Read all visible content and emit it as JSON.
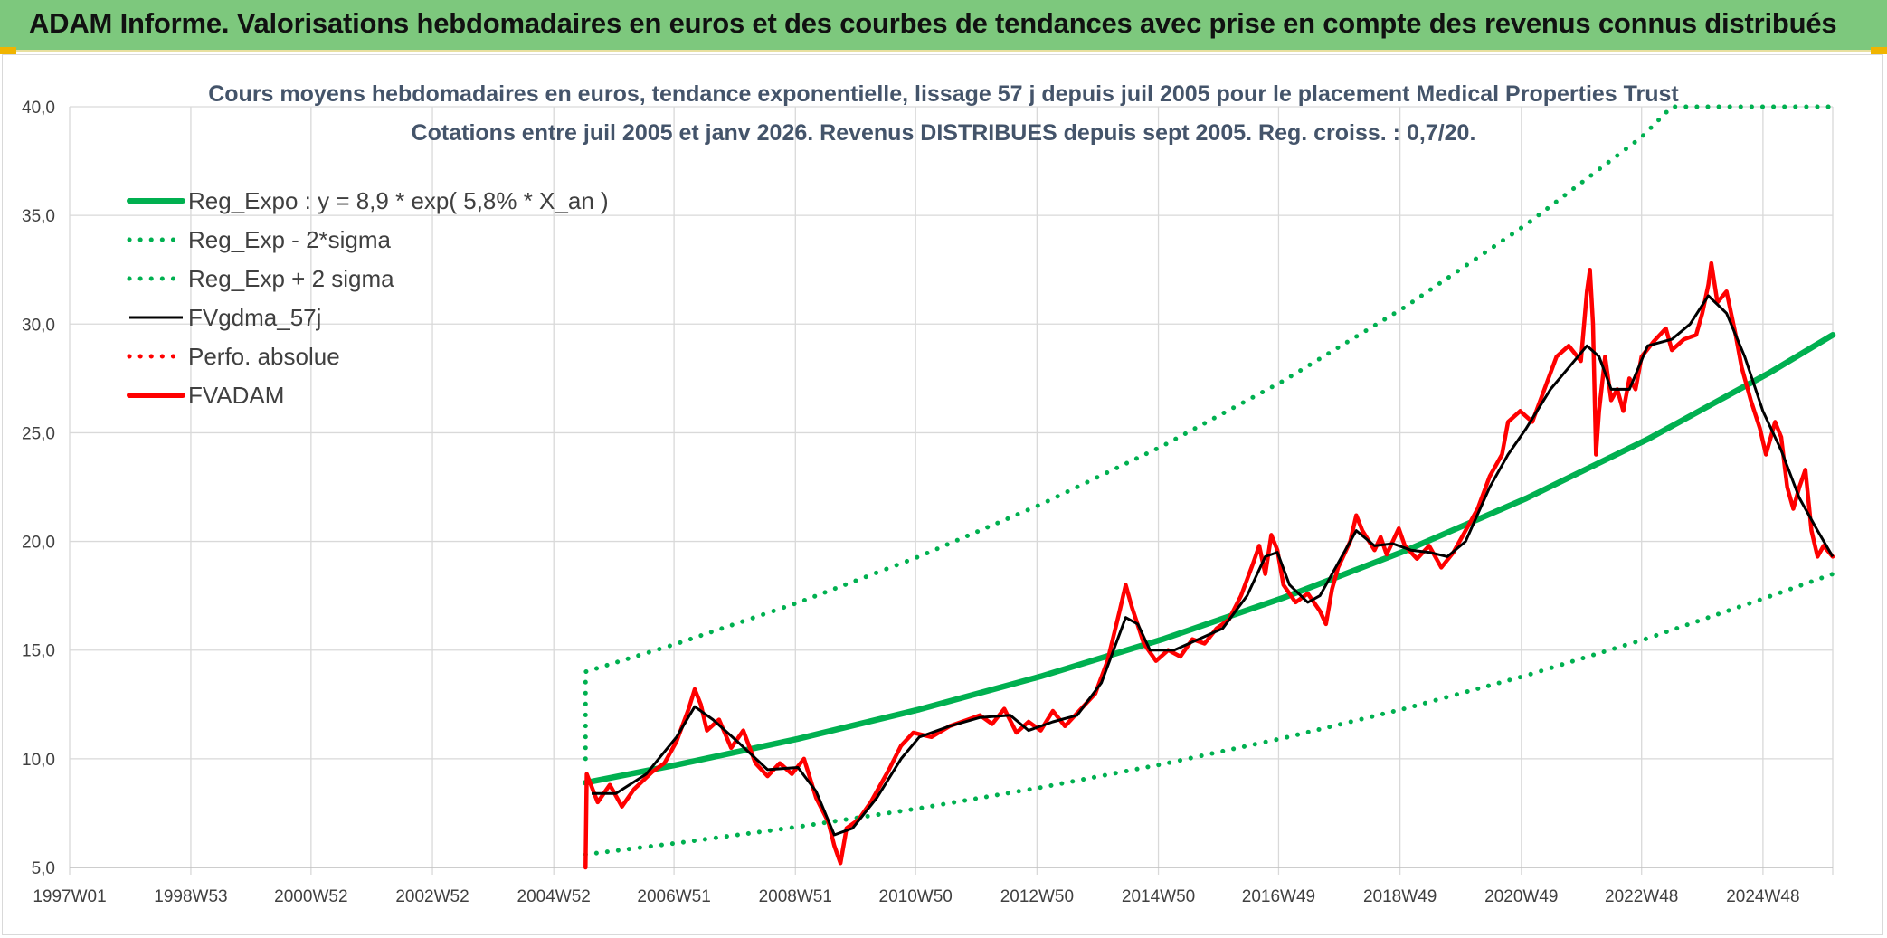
{
  "banner": {
    "title": "ADAM Informe. Valorisations hebdomadaires en euros et des courbes de tendances avec prise en compte des revenus connus distribués"
  },
  "colors": {
    "banner_bg": "#7dc87d",
    "trend_green": "#00b050",
    "band_green": "#00b050",
    "smooth_black": "#000000",
    "price_red": "#ff0000",
    "grid": "#d9d9d9"
  },
  "chart_data": {
    "type": "line",
    "title": "Cours moyens hebdomadaires en euros, tendance exponentielle, lissage 57 j depuis juil 2005 pour le placement Medical Properties Trust",
    "subtitle": "Cotations entre juil 2005 et janv 2026. Revenus DISTRIBUES depuis sept 2005. Reg. croiss. : 0,7/20.",
    "xlabel": "",
    "ylabel": "",
    "x_ticks": [
      "1997W01",
      "1998W53",
      "2000W52",
      "2002W52",
      "2004W52",
      "2006W51",
      "2008W51",
      "2010W50",
      "2012W50",
      "2014W50",
      "2016W49",
      "2018W49",
      "2020W49",
      "2022W48",
      "2024W48"
    ],
    "x_range": [
      1997.0,
      2026.05
    ],
    "y_ticks": [
      "5,0",
      "10,0",
      "15,0",
      "20,0",
      "25,0",
      "30,0",
      "35,0",
      "40,0"
    ],
    "ylim": [
      5,
      40
    ],
    "grid": true,
    "legend_position": "top-left",
    "series": [
      {
        "name": "Reg_Expo : y = 8,9 * exp( 5,8% *  X_an )",
        "style": "solid-thick",
        "color": "#00b050",
        "points": [
          [
            2005.5,
            8.9
          ],
          [
            2007.0,
            9.72
          ],
          [
            2009.0,
            10.92
          ],
          [
            2011.0,
            12.27
          ],
          [
            2013.0,
            13.79
          ],
          [
            2015.0,
            15.49
          ],
          [
            2017.0,
            17.41
          ],
          [
            2019.0,
            19.56
          ],
          [
            2021.0,
            21.98
          ],
          [
            2023.0,
            24.7
          ],
          [
            2025.0,
            27.75
          ],
          [
            2026.05,
            29.5
          ]
        ]
      },
      {
        "name": "Reg_Exp - 2*sigma",
        "style": "dotted",
        "color": "#00b050",
        "points": [
          [
            2005.5,
            5.6
          ],
          [
            2007.0,
            6.12
          ],
          [
            2009.0,
            6.87
          ],
          [
            2011.0,
            7.72
          ],
          [
            2013.0,
            8.68
          ],
          [
            2015.0,
            9.75
          ],
          [
            2017.0,
            10.95
          ],
          [
            2019.0,
            12.31
          ],
          [
            2021.0,
            13.83
          ],
          [
            2023.0,
            15.54
          ],
          [
            2025.0,
            17.46
          ],
          [
            2026.05,
            18.5
          ]
        ]
      },
      {
        "name": "Reg_Exp + 2 sigma",
        "style": "dotted",
        "color": "#00b050",
        "points": [
          [
            2005.5,
            10.0
          ],
          [
            2005.5,
            14.0
          ],
          [
            2007.0,
            15.29
          ],
          [
            2009.0,
            17.18
          ],
          [
            2011.0,
            19.31
          ],
          [
            2013.0,
            21.7
          ],
          [
            2015.0,
            24.38
          ],
          [
            2017.0,
            27.39
          ],
          [
            2019.0,
            30.78
          ],
          [
            2021.0,
            34.58
          ],
          [
            2022.9,
            38.6
          ],
          [
            2023.4,
            40.0
          ],
          [
            2026.05,
            40.0
          ]
        ]
      },
      {
        "name": "FVgdma_57j",
        "style": "solid",
        "color": "#000000",
        "points": [
          [
            2005.6,
            8.4
          ],
          [
            2006.0,
            8.4
          ],
          [
            2006.5,
            9.3
          ],
          [
            2007.0,
            11.0
          ],
          [
            2007.3,
            12.4
          ],
          [
            2007.6,
            11.8
          ],
          [
            2008.0,
            10.8
          ],
          [
            2008.5,
            9.5
          ],
          [
            2009.0,
            9.6
          ],
          [
            2009.3,
            8.5
          ],
          [
            2009.6,
            6.5
          ],
          [
            2009.9,
            6.8
          ],
          [
            2010.3,
            8.2
          ],
          [
            2010.7,
            10.0
          ],
          [
            2011.0,
            11.0
          ],
          [
            2011.5,
            11.5
          ],
          [
            2012.0,
            11.9
          ],
          [
            2012.5,
            12.0
          ],
          [
            2012.8,
            11.3
          ],
          [
            2013.2,
            11.7
          ],
          [
            2013.6,
            12.0
          ],
          [
            2014.0,
            13.5
          ],
          [
            2014.4,
            16.5
          ],
          [
            2014.6,
            16.2
          ],
          [
            2014.8,
            15.0
          ],
          [
            2015.2,
            15.0
          ],
          [
            2015.6,
            15.5
          ],
          [
            2016.0,
            16.0
          ],
          [
            2016.4,
            17.5
          ],
          [
            2016.7,
            19.3
          ],
          [
            2016.9,
            19.5
          ],
          [
            2017.1,
            18.0
          ],
          [
            2017.4,
            17.2
          ],
          [
            2017.6,
            17.5
          ],
          [
            2017.9,
            19.0
          ],
          [
            2018.2,
            20.5
          ],
          [
            2018.5,
            19.8
          ],
          [
            2018.8,
            19.9
          ],
          [
            2019.1,
            19.6
          ],
          [
            2019.4,
            19.5
          ],
          [
            2019.7,
            19.3
          ],
          [
            2020.0,
            20.0
          ],
          [
            2020.4,
            22.5
          ],
          [
            2020.7,
            24.0
          ],
          [
            2021.0,
            25.2
          ],
          [
            2021.4,
            27.0
          ],
          [
            2021.7,
            28.0
          ],
          [
            2022.0,
            29.0
          ],
          [
            2022.2,
            28.5
          ],
          [
            2022.4,
            27.0
          ],
          [
            2022.7,
            27.0
          ],
          [
            2023.0,
            29.0
          ],
          [
            2023.4,
            29.3
          ],
          [
            2023.7,
            30.0
          ],
          [
            2024.0,
            31.3
          ],
          [
            2024.3,
            30.5
          ],
          [
            2024.6,
            28.5
          ],
          [
            2024.9,
            26.0
          ],
          [
            2025.2,
            24.2
          ],
          [
            2025.5,
            22.0
          ],
          [
            2025.8,
            20.5
          ],
          [
            2026.05,
            19.3
          ]
        ]
      },
      {
        "name": "Perfo. absolue",
        "style": "dotted",
        "color": "#ff0000",
        "points": []
      },
      {
        "name": "FVADAM",
        "style": "solid-thick",
        "color": "#ff0000",
        "points": [
          [
            2005.5,
            5.0
          ],
          [
            2005.52,
            9.3
          ],
          [
            2005.7,
            8.0
          ],
          [
            2005.9,
            8.8
          ],
          [
            2006.1,
            7.8
          ],
          [
            2006.3,
            8.6
          ],
          [
            2006.6,
            9.4
          ],
          [
            2006.8,
            9.8
          ],
          [
            2007.0,
            10.8
          ],
          [
            2007.2,
            12.3
          ],
          [
            2007.3,
            13.2
          ],
          [
            2007.4,
            12.5
          ],
          [
            2007.5,
            11.3
          ],
          [
            2007.7,
            11.8
          ],
          [
            2007.9,
            10.5
          ],
          [
            2008.1,
            11.3
          ],
          [
            2008.3,
            9.8
          ],
          [
            2008.5,
            9.2
          ],
          [
            2008.7,
            9.8
          ],
          [
            2008.9,
            9.3
          ],
          [
            2009.1,
            10.0
          ],
          [
            2009.3,
            8.2
          ],
          [
            2009.5,
            7.1
          ],
          [
            2009.6,
            6.0
          ],
          [
            2009.7,
            5.2
          ],
          [
            2009.8,
            6.8
          ],
          [
            2010.0,
            7.2
          ],
          [
            2010.2,
            8.0
          ],
          [
            2010.5,
            9.5
          ],
          [
            2010.7,
            10.6
          ],
          [
            2010.9,
            11.2
          ],
          [
            2011.2,
            11.0
          ],
          [
            2011.5,
            11.5
          ],
          [
            2011.8,
            11.8
          ],
          [
            2012.0,
            12.0
          ],
          [
            2012.2,
            11.6
          ],
          [
            2012.4,
            12.3
          ],
          [
            2012.6,
            11.2
          ],
          [
            2012.8,
            11.7
          ],
          [
            2013.0,
            11.3
          ],
          [
            2013.2,
            12.2
          ],
          [
            2013.4,
            11.5
          ],
          [
            2013.6,
            12.1
          ],
          [
            2013.9,
            13.0
          ],
          [
            2014.1,
            14.5
          ],
          [
            2014.3,
            16.8
          ],
          [
            2014.4,
            18.0
          ],
          [
            2014.5,
            17.0
          ],
          [
            2014.7,
            15.3
          ],
          [
            2014.9,
            14.5
          ],
          [
            2015.1,
            15.0
          ],
          [
            2015.3,
            14.7
          ],
          [
            2015.5,
            15.5
          ],
          [
            2015.7,
            15.3
          ],
          [
            2015.9,
            16.0
          ],
          [
            2016.1,
            16.4
          ],
          [
            2016.3,
            17.5
          ],
          [
            2016.5,
            19.0
          ],
          [
            2016.6,
            19.8
          ],
          [
            2016.7,
            18.5
          ],
          [
            2016.8,
            20.3
          ],
          [
            2016.9,
            19.6
          ],
          [
            2017.0,
            18.0
          ],
          [
            2017.2,
            17.2
          ],
          [
            2017.4,
            17.6
          ],
          [
            2017.6,
            16.8
          ],
          [
            2017.7,
            16.2
          ],
          [
            2017.8,
            17.8
          ],
          [
            2017.9,
            18.8
          ],
          [
            2018.1,
            20.0
          ],
          [
            2018.2,
            21.2
          ],
          [
            2018.3,
            20.5
          ],
          [
            2018.5,
            19.6
          ],
          [
            2018.6,
            20.2
          ],
          [
            2018.7,
            19.4
          ],
          [
            2018.9,
            20.6
          ],
          [
            2019.0,
            19.8
          ],
          [
            2019.2,
            19.2
          ],
          [
            2019.4,
            19.8
          ],
          [
            2019.6,
            18.8
          ],
          [
            2019.8,
            19.5
          ],
          [
            2020.0,
            20.5
          ],
          [
            2020.2,
            21.5
          ],
          [
            2020.4,
            23.0
          ],
          [
            2020.6,
            24.0
          ],
          [
            2020.7,
            25.5
          ],
          [
            2020.9,
            26.0
          ],
          [
            2021.1,
            25.5
          ],
          [
            2021.3,
            27.0
          ],
          [
            2021.5,
            28.5
          ],
          [
            2021.7,
            29.0
          ],
          [
            2021.9,
            28.3
          ],
          [
            2022.0,
            31.5
          ],
          [
            2022.05,
            32.5
          ],
          [
            2022.1,
            30.0
          ],
          [
            2022.15,
            24.0
          ],
          [
            2022.2,
            26.0
          ],
          [
            2022.3,
            28.5
          ],
          [
            2022.4,
            26.5
          ],
          [
            2022.5,
            27.0
          ],
          [
            2022.6,
            26.0
          ],
          [
            2022.7,
            27.5
          ],
          [
            2022.8,
            27.0
          ],
          [
            2022.9,
            28.5
          ],
          [
            2023.1,
            29.2
          ],
          [
            2023.3,
            29.8
          ],
          [
            2023.4,
            28.8
          ],
          [
            2023.6,
            29.3
          ],
          [
            2023.8,
            29.5
          ],
          [
            2023.9,
            30.5
          ],
          [
            2024.0,
            31.8
          ],
          [
            2024.05,
            32.8
          ],
          [
            2024.15,
            31.0
          ],
          [
            2024.3,
            31.5
          ],
          [
            2024.45,
            29.5
          ],
          [
            2024.55,
            28.0
          ],
          [
            2024.7,
            26.5
          ],
          [
            2024.85,
            25.2
          ],
          [
            2024.95,
            24.0
          ],
          [
            2025.1,
            25.5
          ],
          [
            2025.2,
            24.8
          ],
          [
            2025.3,
            22.5
          ],
          [
            2025.4,
            21.5
          ],
          [
            2025.5,
            22.5
          ],
          [
            2025.6,
            23.3
          ],
          [
            2025.7,
            20.5
          ],
          [
            2025.8,
            19.3
          ],
          [
            2025.9,
            19.8
          ],
          [
            2026.05,
            19.3
          ]
        ]
      }
    ]
  }
}
